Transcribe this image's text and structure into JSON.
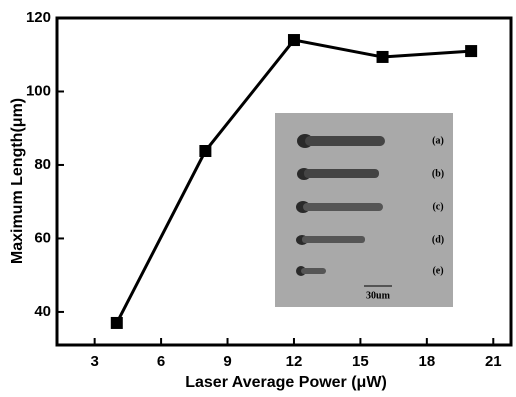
{
  "chart_data": {
    "type": "line",
    "x_label": "Laser Average Power (μW)",
    "y_label": "Maximum Length(μm)",
    "x": [
      4,
      8,
      12,
      16,
      20
    ],
    "series": [
      {
        "color": "#000000",
        "values": [
          37,
          83.8,
          114,
          109.4,
          111
        ]
      }
    ],
    "xlim": [
      1.3,
      21.8
    ],
    "xticks": [
      3,
      6,
      9,
      12,
      15,
      18,
      21
    ],
    "ylim": [
      31,
      120
    ],
    "yticks": [
      40,
      60,
      80,
      100,
      120
    ],
    "inset_labels": [
      "(a)",
      "(b)",
      "(c)",
      "(d)",
      "(e)"
    ],
    "scale_bar": "30um"
  }
}
